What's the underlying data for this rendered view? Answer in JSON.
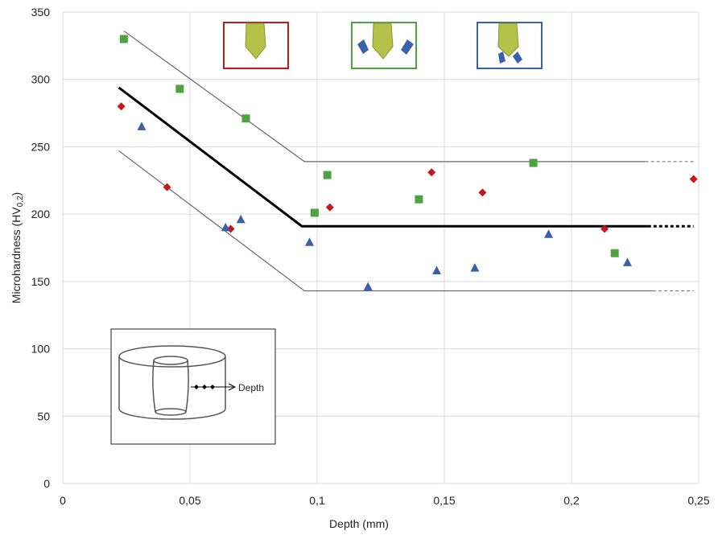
{
  "chart_data": {
    "type": "scatter",
    "x_label": "Depth (mm)",
    "y_label": {
      "text": "Microhardness (HV",
      "sub": "0,2",
      "end": ")"
    },
    "inset_label": "Depth",
    "xlim": [
      0,
      0.25
    ],
    "xticks": [
      0,
      {
        "value": 0.05,
        "label": "0,05"
      },
      {
        "value": 0.1,
        "label": "0,1"
      },
      {
        "value": 0.15,
        "label": "0,15"
      },
      {
        "value": 0.2,
        "label": "0,2"
      },
      {
        "value": 0.25,
        "label": "0,25"
      }
    ],
    "ylim": [
      0,
      350
    ],
    "yticks": [
      0,
      50,
      100,
      150,
      200,
      250,
      300,
      350
    ],
    "grid": true,
    "series": [
      {
        "marker": "diamond",
        "color": "#c8161d",
        "x": [
          0.023,
          0.041,
          0.066,
          0.105,
          0.145,
          0.165,
          0.213,
          0.248
        ],
        "values": [
          280,
          220,
          189,
          205,
          231,
          216,
          189,
          226
        ]
      },
      {
        "marker": "square",
        "color": "#4ea23f",
        "x": [
          0.024,
          0.046,
          0.072,
          0.099,
          0.104,
          0.14,
          0.185,
          0.217
        ],
        "values": [
          330,
          293,
          271,
          201,
          229,
          211,
          238,
          171
        ]
      },
      {
        "marker": "triangle",
        "color": "#3a5fad",
        "x": [
          0.031,
          0.064,
          0.07,
          0.097,
          0.12,
          0.147,
          0.162,
          0.191,
          0.222
        ],
        "values": [
          265,
          190,
          196,
          179,
          146,
          158,
          160,
          185,
          164
        ]
      },
      {
        "line": "solid",
        "width": 3,
        "color": "#000000",
        "x": [
          0.022,
          0.094,
          0.23
        ],
        "values": [
          294,
          191,
          191
        ]
      },
      {
        "line": "dashed",
        "width": 3,
        "color": "#000000",
        "x": [
          0.23,
          0.248
        ],
        "values": [
          191,
          191
        ]
      },
      {
        "line": "solid",
        "width": 1.2,
        "color": "#666666",
        "x": [
          0.024,
          0.095,
          0.229
        ],
        "values": [
          336,
          239,
          239
        ]
      },
      {
        "line": "dashed",
        "width": 1,
        "color": "#666666",
        "x": [
          0.229,
          0.248
        ],
        "values": [
          239,
          239
        ]
      },
      {
        "line": "solid",
        "width": 1.2,
        "color": "#666666",
        "x": [
          0.022,
          0.095,
          0.232
        ],
        "values": [
          247,
          143,
          143
        ]
      },
      {
        "line": "dashed",
        "width": 1,
        "color": "#666666",
        "x": [
          0.232,
          0.248
        ],
        "values": [
          143,
          143
        ]
      }
    ]
  }
}
